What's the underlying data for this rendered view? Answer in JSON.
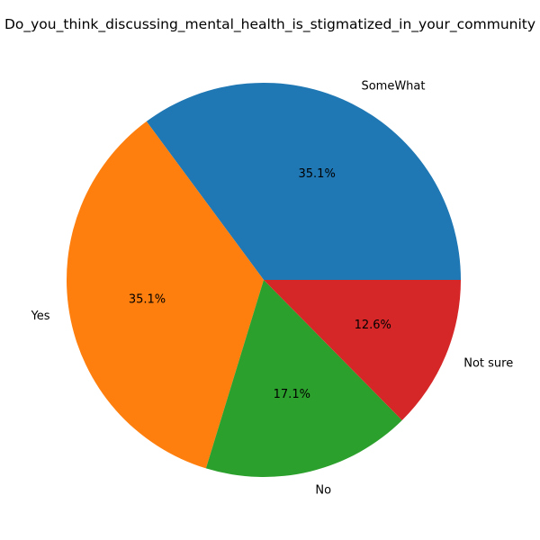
{
  "chart_data": {
    "type": "pie",
    "title": "Do_you_think_discussing_mental_health_is_stigmatized_in_your_community",
    "categories": [
      "SomeWhat",
      "Yes",
      "No",
      "Not sure"
    ],
    "values": [
      35.1,
      35.1,
      17.1,
      12.6
    ],
    "percent_labels": [
      "35.1%",
      "35.1%",
      "17.1%",
      "12.6%"
    ],
    "colors": [
      "#1f77b4",
      "#ff7f0e",
      "#2ca02c",
      "#d62728"
    ],
    "start_angle_deg": 0,
    "direction": "counterclockwise",
    "legend": "none"
  }
}
